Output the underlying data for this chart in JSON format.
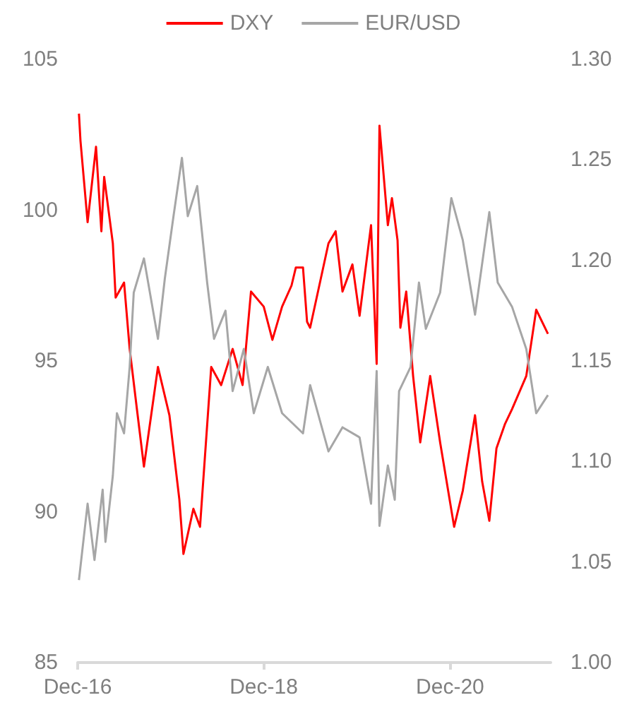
{
  "chart_data": {
    "type": "line",
    "legend": "top",
    "grid": false,
    "marker": "none",
    "line_style": "solid",
    "xlim": [
      "2016-12-01",
      "2021-12-31"
    ],
    "xticks": [
      {
        "value": "2016-12-01",
        "label": "Dec-16"
      },
      {
        "value": "2018-12-01",
        "label": "Dec-18"
      },
      {
        "value": "2020-12-01",
        "label": "Dec-20"
      }
    ],
    "ylim": [
      85,
      105
    ],
    "yticks": [
      85,
      90,
      95,
      100,
      105
    ],
    "y2lim": [
      1.0,
      1.3
    ],
    "y2ticks": [
      {
        "value": 1.0,
        "label": "1.00"
      },
      {
        "value": 1.05,
        "label": "1.05"
      },
      {
        "value": 1.1,
        "label": "1.10"
      },
      {
        "value": 1.15,
        "label": "1.15"
      },
      {
        "value": 1.2,
        "label": "1.20"
      },
      {
        "value": 1.25,
        "label": "1.25"
      },
      {
        "value": 1.3,
        "label": "1.30"
      }
    ],
    "series": [
      {
        "name": "DXY",
        "color": "#ff0000",
        "x": [
          "2016-12-06",
          "2016-12-12",
          "2017-01-09",
          "2017-02-11",
          "2017-03-04",
          "2017-03-15",
          "2017-04-18",
          "2017-04-29",
          "2017-06-01",
          "2017-06-23",
          "2017-07-20",
          "2017-08-18",
          "2017-10-12",
          "2017-11-26",
          "2018-01-04",
          "2018-01-20",
          "2018-02-28",
          "2018-03-26",
          "2018-05-09",
          "2018-06-17",
          "2018-08-01",
          "2018-09-09",
          "2018-10-12",
          "2018-12-01",
          "2019-01-04",
          "2019-02-11",
          "2019-03-20",
          "2019-04-06",
          "2019-05-04",
          "2019-05-20",
          "2019-06-01",
          "2019-08-12",
          "2019-09-09",
          "2019-10-06",
          "2019-11-14",
          "2019-12-12",
          "2020-01-26",
          "2020-02-17",
          "2020-02-28",
          "2020-04-01",
          "2020-04-17",
          "2020-05-09",
          "2020-05-20",
          "2020-06-12",
          "2020-07-09",
          "2020-08-06",
          "2020-09-14",
          "2020-10-23",
          "2020-12-17",
          "2021-01-20",
          "2021-03-09",
          "2021-04-06",
          "2021-05-04",
          "2021-06-01",
          "2021-07-04",
          "2021-08-01",
          "2021-09-26",
          "2021-11-04",
          "2021-12-20"
        ],
        "values": [
          103.2,
          102.3,
          99.6,
          102.1,
          99.3,
          101.1,
          98.9,
          97.1,
          97.6,
          95.4,
          93.5,
          91.5,
          94.8,
          93.2,
          90.4,
          88.6,
          90.1,
          89.5,
          94.8,
          94.2,
          95.4,
          94.2,
          97.3,
          96.8,
          95.7,
          96.8,
          97.5,
          98.1,
          98.1,
          96.3,
          96.1,
          98.9,
          99.3,
          97.3,
          98.2,
          96.5,
          99.5,
          94.9,
          102.8,
          99.5,
          100.4,
          99.0,
          96.1,
          97.3,
          94.5,
          92.3,
          94.5,
          92.3,
          89.5,
          90.7,
          93.2,
          91.0,
          89.7,
          92.1,
          92.9,
          93.4,
          94.5,
          96.7,
          95.9
        ]
      },
      {
        "name": "EUR/USD",
        "color": "#a6a6a6",
        "axis": "y2",
        "x": [
          "2016-12-06",
          "2017-01-09",
          "2017-02-05",
          "2017-03-09",
          "2017-03-20",
          "2017-04-18",
          "2017-05-04",
          "2017-06-01",
          "2017-06-23",
          "2017-07-09",
          "2017-08-18",
          "2017-10-12",
          "2017-11-08",
          "2017-12-12",
          "2018-01-14",
          "2018-02-06",
          "2018-03-15",
          "2018-04-23",
          "2018-05-20",
          "2018-07-04",
          "2018-08-01",
          "2018-09-14",
          "2018-10-23",
          "2018-12-17",
          "2019-02-11",
          "2019-05-04",
          "2019-06-01",
          "2019-08-12",
          "2019-10-06",
          "2019-12-12",
          "2020-01-26",
          "2020-02-17",
          "2020-02-28",
          "2020-04-01",
          "2020-04-28",
          "2020-05-15",
          "2020-06-29",
          "2020-08-01",
          "2020-08-28",
          "2020-10-23",
          "2020-12-06",
          "2021-01-20",
          "2021-03-09",
          "2021-05-04",
          "2021-06-06",
          "2021-08-01",
          "2021-09-26",
          "2021-11-04",
          "2021-12-20"
        ],
        "values": [
          1.041,
          1.079,
          1.051,
          1.086,
          1.06,
          1.093,
          1.124,
          1.114,
          1.147,
          1.184,
          1.201,
          1.161,
          1.191,
          1.222,
          1.251,
          1.222,
          1.237,
          1.189,
          1.161,
          1.175,
          1.135,
          1.156,
          1.124,
          1.147,
          1.124,
          1.114,
          1.138,
          1.105,
          1.117,
          1.112,
          1.079,
          1.145,
          1.068,
          1.098,
          1.081,
          1.135,
          1.147,
          1.189,
          1.166,
          1.184,
          1.231,
          1.21,
          1.173,
          1.224,
          1.189,
          1.177,
          1.156,
          1.124,
          1.133
        ]
      }
    ]
  }
}
